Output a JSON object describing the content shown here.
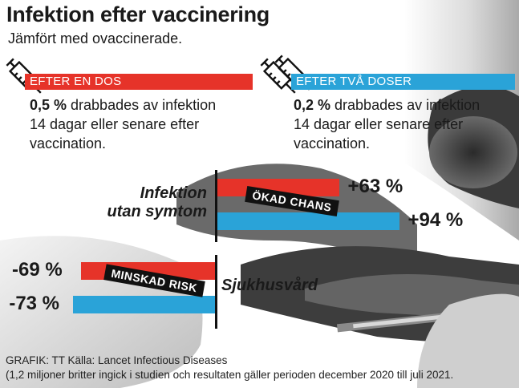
{
  "header": {
    "title": "Infektion efter vaccinering",
    "subtitle": "Jämfört med ovaccinerade."
  },
  "colors": {
    "one_dose": "#e63329",
    "two_doses": "#2aa3d8",
    "text": "#1a1a1a"
  },
  "one_dose": {
    "label": "EFTER EN DOS",
    "highlight": "0,5 %",
    "line1_rest": " drabbades av infektion",
    "line2": "14 dagar eller senare efter",
    "line3": "vaccination.",
    "icon": "syringe-icon"
  },
  "two_doses": {
    "label": "EFTER TVÅ DOSER",
    "highlight": "0,2 %",
    "line1_rest": " drabbades av infektion",
    "line2": "14 dagar eller senare efter",
    "line3": "vaccination.",
    "icon": "double-syringe-icon"
  },
  "chart_data": {
    "type": "bar",
    "orientation": "horizontal",
    "groups": [
      {
        "category": "Infektion utan symtom",
        "category_lines": [
          "Infektion",
          "utan symtom"
        ],
        "stamp": "ÖKAD CHANS",
        "direction": "positive",
        "values": [
          63,
          94
        ],
        "value_labels": [
          "+63 %",
          "+94 %"
        ]
      },
      {
        "category": "Sjukhusvård",
        "category_lines": [
          "Sjukhusvård"
        ],
        "stamp": "MINSKAD RISK",
        "direction": "negative",
        "values": [
          -69,
          -73
        ],
        "value_labels": [
          "-69 %",
          "-73 %"
        ]
      }
    ],
    "series": [
      {
        "name": "EFTER EN DOS",
        "color": "#e63329"
      },
      {
        "name": "EFTER TVÅ DOSER",
        "color": "#2aa3d8"
      }
    ],
    "unit": "%"
  },
  "footer": {
    "line1": "GRAFIK: TT Källa: Lancet Infectious Diseases",
    "line2": "(1,2 miljoner britter ingick i studien och resultaten gäller perioden december 2020 till juli 2021."
  }
}
